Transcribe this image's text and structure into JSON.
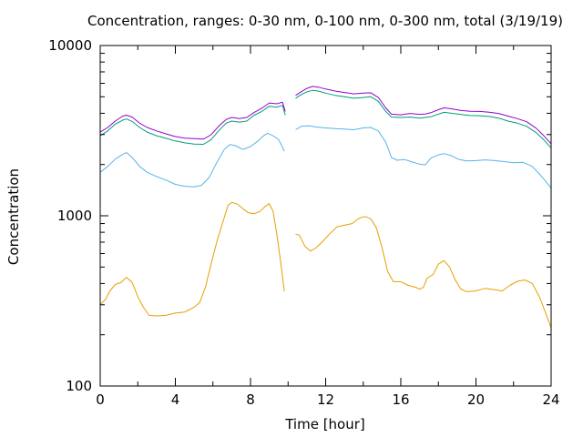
{
  "chart_data": {
    "type": "line",
    "title": "Concentration, ranges: 0-30 nm, 0-100 nm, 0-300 nm, total (3/19/19)",
    "xlabel": "Time [hour]",
    "ylabel": "Concentration",
    "xlim": [
      0,
      24
    ],
    "ylim": [
      100,
      10000
    ],
    "yscale": "log",
    "grid": false,
    "legend": "none",
    "xticks": [
      0,
      4,
      8,
      12,
      16,
      20,
      24
    ],
    "xtick_labels": [
      "0",
      "4",
      "8",
      "12",
      "16",
      "20",
      "24"
    ],
    "yticks": [
      100,
      1000,
      10000
    ],
    "ytick_labels": [
      "100",
      "1000",
      "10000"
    ],
    "gap": [
      9.85,
      10.35
    ],
    "series": [
      {
        "color": "#e69f00",
        "points": [
          [
            0,
            300
          ],
          [
            0.3,
            325
          ],
          [
            0.5,
            360
          ],
          [
            0.8,
            395
          ],
          [
            1.1,
            405
          ],
          [
            1.4,
            435
          ],
          [
            1.7,
            405
          ],
          [
            2.0,
            335
          ],
          [
            2.3,
            290
          ],
          [
            2.6,
            260
          ],
          [
            3.0,
            258
          ],
          [
            3.5,
            260
          ],
          [
            4.0,
            268
          ],
          [
            4.5,
            272
          ],
          [
            5.0,
            290
          ],
          [
            5.3,
            310
          ],
          [
            5.6,
            380
          ],
          [
            5.9,
            520
          ],
          [
            6.2,
            700
          ],
          [
            6.5,
            900
          ],
          [
            6.8,
            1150
          ],
          [
            7.0,
            1200
          ],
          [
            7.3,
            1170
          ],
          [
            7.6,
            1100
          ],
          [
            7.9,
            1040
          ],
          [
            8.2,
            1030
          ],
          [
            8.5,
            1060
          ],
          [
            8.8,
            1140
          ],
          [
            9.0,
            1180
          ],
          [
            9.2,
            1060
          ],
          [
            9.4,
            780
          ],
          [
            9.6,
            540
          ],
          [
            9.8,
            360
          ],
          [
            10.4,
            780
          ],
          [
            10.6,
            770
          ],
          [
            10.9,
            660
          ],
          [
            11.2,
            620
          ],
          [
            11.5,
            650
          ],
          [
            11.8,
            700
          ],
          [
            12.2,
            780
          ],
          [
            12.6,
            860
          ],
          [
            13.0,
            880
          ],
          [
            13.4,
            900
          ],
          [
            13.8,
            970
          ],
          [
            14.1,
            990
          ],
          [
            14.4,
            960
          ],
          [
            14.7,
            850
          ],
          [
            15.0,
            650
          ],
          [
            15.3,
            470
          ],
          [
            15.6,
            410
          ],
          [
            16.0,
            410
          ],
          [
            16.4,
            390
          ],
          [
            16.8,
            380
          ],
          [
            17.0,
            370
          ],
          [
            17.2,
            380
          ],
          [
            17.4,
            430
          ],
          [
            17.7,
            450
          ],
          [
            18.0,
            520
          ],
          [
            18.3,
            545
          ],
          [
            18.6,
            500
          ],
          [
            18.9,
            420
          ],
          [
            19.2,
            370
          ],
          [
            19.5,
            358
          ],
          [
            20.0,
            362
          ],
          [
            20.5,
            375
          ],
          [
            21.0,
            368
          ],
          [
            21.4,
            362
          ],
          [
            21.8,
            390
          ],
          [
            22.2,
            412
          ],
          [
            22.6,
            420
          ],
          [
            23.0,
            400
          ],
          [
            23.4,
            330
          ],
          [
            23.7,
            270
          ],
          [
            24.0,
            220
          ]
        ]
      },
      {
        "color": "#56b4e9",
        "points": [
          [
            0,
            1800
          ],
          [
            0.4,
            1950
          ],
          [
            0.8,
            2150
          ],
          [
            1.2,
            2300
          ],
          [
            1.4,
            2350
          ],
          [
            1.7,
            2200
          ],
          [
            2.1,
            1950
          ],
          [
            2.5,
            1800
          ],
          [
            3.0,
            1700
          ],
          [
            3.5,
            1620
          ],
          [
            4.0,
            1530
          ],
          [
            4.5,
            1490
          ],
          [
            5.0,
            1480
          ],
          [
            5.4,
            1510
          ],
          [
            5.8,
            1680
          ],
          [
            6.2,
            2050
          ],
          [
            6.6,
            2450
          ],
          [
            6.9,
            2620
          ],
          [
            7.2,
            2580
          ],
          [
            7.6,
            2450
          ],
          [
            8.0,
            2550
          ],
          [
            8.4,
            2750
          ],
          [
            8.7,
            2950
          ],
          [
            8.9,
            3050
          ],
          [
            9.2,
            2950
          ],
          [
            9.5,
            2800
          ],
          [
            9.8,
            2400
          ],
          [
            10.4,
            3200
          ],
          [
            10.7,
            3350
          ],
          [
            11.1,
            3380
          ],
          [
            11.5,
            3320
          ],
          [
            12.0,
            3280
          ],
          [
            12.5,
            3250
          ],
          [
            13.0,
            3230
          ],
          [
            13.5,
            3200
          ],
          [
            14.0,
            3280
          ],
          [
            14.4,
            3300
          ],
          [
            14.8,
            3150
          ],
          [
            15.2,
            2700
          ],
          [
            15.5,
            2200
          ],
          [
            15.8,
            2120
          ],
          [
            16.2,
            2140
          ],
          [
            16.6,
            2070
          ],
          [
            17.0,
            2010
          ],
          [
            17.3,
            1990
          ],
          [
            17.6,
            2180
          ],
          [
            18.0,
            2280
          ],
          [
            18.3,
            2320
          ],
          [
            18.7,
            2250
          ],
          [
            19.1,
            2140
          ],
          [
            19.5,
            2100
          ],
          [
            20.0,
            2110
          ],
          [
            20.5,
            2130
          ],
          [
            21.0,
            2110
          ],
          [
            21.5,
            2080
          ],
          [
            22.0,
            2050
          ],
          [
            22.5,
            2060
          ],
          [
            23.0,
            1950
          ],
          [
            23.4,
            1750
          ],
          [
            23.7,
            1600
          ],
          [
            24.0,
            1450
          ]
        ]
      },
      {
        "color": "#009e73",
        "points": [
          [
            0,
            2950
          ],
          [
            0.4,
            3150
          ],
          [
            0.8,
            3450
          ],
          [
            1.2,
            3650
          ],
          [
            1.4,
            3700
          ],
          [
            1.7,
            3580
          ],
          [
            2.1,
            3300
          ],
          [
            2.5,
            3100
          ],
          [
            3.0,
            2950
          ],
          [
            3.5,
            2850
          ],
          [
            4.0,
            2750
          ],
          [
            4.5,
            2680
          ],
          [
            5.0,
            2640
          ],
          [
            5.5,
            2630
          ],
          [
            5.9,
            2800
          ],
          [
            6.3,
            3150
          ],
          [
            6.7,
            3500
          ],
          [
            7.0,
            3600
          ],
          [
            7.4,
            3550
          ],
          [
            7.8,
            3600
          ],
          [
            8.2,
            3900
          ],
          [
            8.6,
            4100
          ],
          [
            9.0,
            4400
          ],
          [
            9.4,
            4350
          ],
          [
            9.7,
            4450
          ],
          [
            9.85,
            3900
          ],
          [
            10.4,
            4900
          ],
          [
            10.7,
            5150
          ],
          [
            11.0,
            5350
          ],
          [
            11.3,
            5450
          ],
          [
            11.6,
            5400
          ],
          [
            12.0,
            5250
          ],
          [
            12.5,
            5100
          ],
          [
            13.0,
            5000
          ],
          [
            13.5,
            4900
          ],
          [
            14.0,
            4950
          ],
          [
            14.4,
            5000
          ],
          [
            14.8,
            4700
          ],
          [
            15.2,
            4100
          ],
          [
            15.5,
            3800
          ],
          [
            16.0,
            3780
          ],
          [
            16.5,
            3800
          ],
          [
            17.0,
            3750
          ],
          [
            17.3,
            3780
          ],
          [
            17.6,
            3820
          ],
          [
            18.0,
            3950
          ],
          [
            18.3,
            4050
          ],
          [
            18.7,
            4000
          ],
          [
            19.2,
            3930
          ],
          [
            19.7,
            3880
          ],
          [
            20.2,
            3870
          ],
          [
            20.7,
            3830
          ],
          [
            21.2,
            3750
          ],
          [
            21.7,
            3600
          ],
          [
            22.2,
            3500
          ],
          [
            22.7,
            3350
          ],
          [
            23.2,
            3080
          ],
          [
            23.6,
            2800
          ],
          [
            24.0,
            2500
          ]
        ]
      },
      {
        "color": "#9400d3",
        "points": [
          [
            0,
            3100
          ],
          [
            0.4,
            3300
          ],
          [
            0.8,
            3600
          ],
          [
            1.2,
            3850
          ],
          [
            1.4,
            3900
          ],
          [
            1.7,
            3800
          ],
          [
            2.1,
            3500
          ],
          [
            2.5,
            3300
          ],
          [
            3.0,
            3150
          ],
          [
            3.5,
            3030
          ],
          [
            4.0,
            2920
          ],
          [
            4.5,
            2860
          ],
          [
            5.0,
            2840
          ],
          [
            5.5,
            2820
          ],
          [
            5.9,
            2990
          ],
          [
            6.3,
            3350
          ],
          [
            6.7,
            3680
          ],
          [
            7.0,
            3780
          ],
          [
            7.4,
            3720
          ],
          [
            7.8,
            3780
          ],
          [
            8.2,
            4050
          ],
          [
            8.6,
            4280
          ],
          [
            9.0,
            4600
          ],
          [
            9.4,
            4550
          ],
          [
            9.7,
            4650
          ],
          [
            9.85,
            4100
          ],
          [
            10.4,
            5100
          ],
          [
            10.7,
            5350
          ],
          [
            11.0,
            5600
          ],
          [
            11.3,
            5750
          ],
          [
            11.6,
            5700
          ],
          [
            12.0,
            5550
          ],
          [
            12.5,
            5400
          ],
          [
            13.0,
            5300
          ],
          [
            13.5,
            5200
          ],
          [
            14.0,
            5250
          ],
          [
            14.4,
            5280
          ],
          [
            14.8,
            4950
          ],
          [
            15.2,
            4300
          ],
          [
            15.5,
            3950
          ],
          [
            16.0,
            3920
          ],
          [
            16.5,
            3990
          ],
          [
            17.0,
            3940
          ],
          [
            17.3,
            3960
          ],
          [
            17.6,
            4030
          ],
          [
            18.0,
            4200
          ],
          [
            18.3,
            4300
          ],
          [
            18.7,
            4250
          ],
          [
            19.2,
            4150
          ],
          [
            19.7,
            4110
          ],
          [
            20.2,
            4100
          ],
          [
            20.7,
            4060
          ],
          [
            21.2,
            3990
          ],
          [
            21.7,
            3850
          ],
          [
            22.2,
            3720
          ],
          [
            22.7,
            3570
          ],
          [
            23.2,
            3270
          ],
          [
            23.6,
            2960
          ],
          [
            24.0,
            2650
          ]
        ]
      }
    ]
  }
}
